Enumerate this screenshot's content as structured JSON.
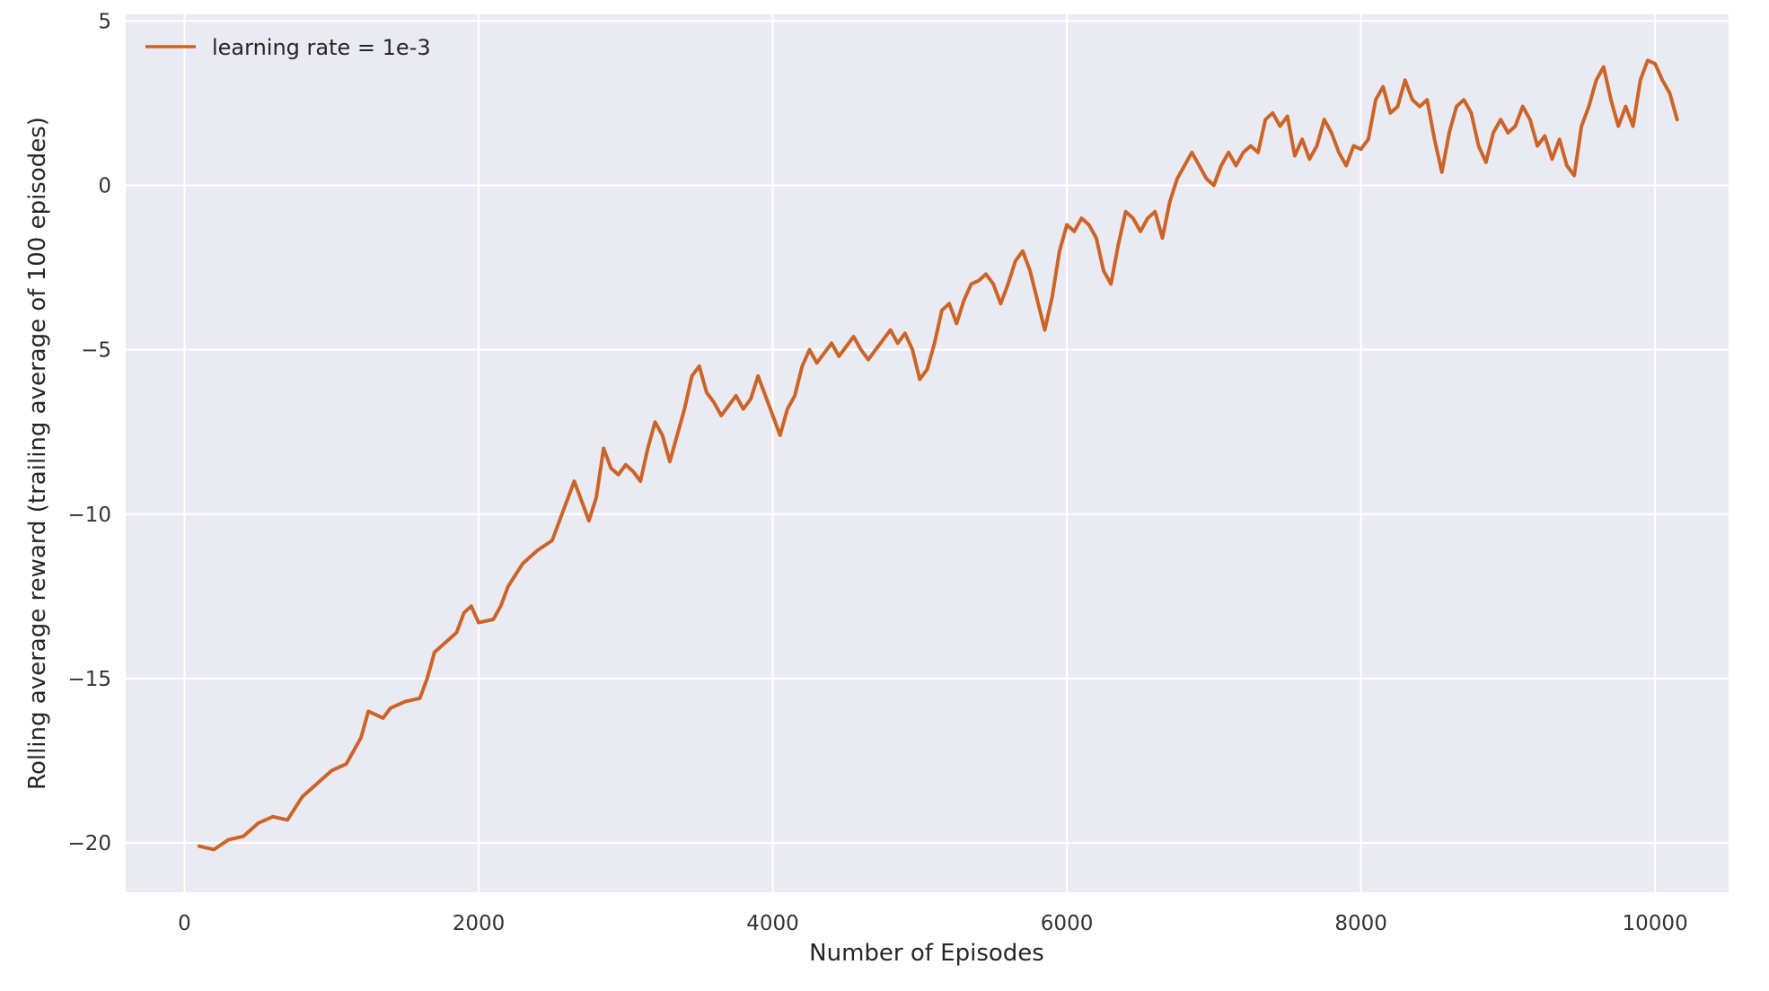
{
  "chart_data": {
    "type": "line",
    "title": "",
    "xlabel": "Number of Episodes",
    "ylabel": "Rolling average reward (trailing average of 100 episodes)",
    "xlim": [
      -400,
      10500
    ],
    "ylim": [
      -21.5,
      5.2
    ],
    "xticks": [
      0,
      2000,
      4000,
      6000,
      8000,
      10000
    ],
    "xtick_labels": [
      "0",
      "2000",
      "4000",
      "6000",
      "8000",
      "10000"
    ],
    "yticks": [
      5,
      0,
      -5,
      -10,
      -15,
      -20
    ],
    "ytick_labels": [
      "5",
      "0",
      "−5",
      "−10",
      "−15",
      "−20"
    ],
    "grid": true,
    "legend_position": "top-left",
    "colors": {
      "background": "#eaeaf2",
      "grid": "#ffffff",
      "line": "#cc6428"
    },
    "series": [
      {
        "name": "learning rate = 1e-3",
        "color": "#cc6428",
        "points": [
          [
            100,
            -20.1
          ],
          [
            200,
            -20.2
          ],
          [
            300,
            -19.9
          ],
          [
            400,
            -19.8
          ],
          [
            500,
            -19.4
          ],
          [
            600,
            -19.2
          ],
          [
            700,
            -19.3
          ],
          [
            800,
            -18.6
          ],
          [
            900,
            -18.2
          ],
          [
            1000,
            -17.8
          ],
          [
            1100,
            -17.6
          ],
          [
            1200,
            -16.8
          ],
          [
            1250,
            -16.0
          ],
          [
            1350,
            -16.2
          ],
          [
            1400,
            -15.9
          ],
          [
            1500,
            -15.7
          ],
          [
            1600,
            -15.6
          ],
          [
            1650,
            -15.0
          ],
          [
            1700,
            -14.2
          ],
          [
            1800,
            -13.8
          ],
          [
            1850,
            -13.6
          ],
          [
            1900,
            -13.0
          ],
          [
            1950,
            -12.8
          ],
          [
            2000,
            -13.3
          ],
          [
            2100,
            -13.2
          ],
          [
            2150,
            -12.8
          ],
          [
            2200,
            -12.2
          ],
          [
            2300,
            -11.5
          ],
          [
            2400,
            -11.1
          ],
          [
            2500,
            -10.8
          ],
          [
            2550,
            -10.2
          ],
          [
            2600,
            -9.6
          ],
          [
            2650,
            -9.0
          ],
          [
            2700,
            -9.6
          ],
          [
            2750,
            -10.2
          ],
          [
            2800,
            -9.5
          ],
          [
            2850,
            -8.0
          ],
          [
            2900,
            -8.6
          ],
          [
            2950,
            -8.8
          ],
          [
            3000,
            -8.5
          ],
          [
            3050,
            -8.7
          ],
          [
            3100,
            -9.0
          ],
          [
            3150,
            -8.0
          ],
          [
            3200,
            -7.2
          ],
          [
            3250,
            -7.6
          ],
          [
            3300,
            -8.4
          ],
          [
            3350,
            -7.6
          ],
          [
            3400,
            -6.8
          ],
          [
            3450,
            -5.8
          ],
          [
            3500,
            -5.5
          ],
          [
            3550,
            -6.3
          ],
          [
            3600,
            -6.6
          ],
          [
            3650,
            -7.0
          ],
          [
            3700,
            -6.7
          ],
          [
            3750,
            -6.4
          ],
          [
            3800,
            -6.8
          ],
          [
            3850,
            -6.5
          ],
          [
            3900,
            -5.8
          ],
          [
            3950,
            -6.4
          ],
          [
            4000,
            -7.0
          ],
          [
            4050,
            -7.6
          ],
          [
            4100,
            -6.8
          ],
          [
            4150,
            -6.4
          ],
          [
            4200,
            -5.5
          ],
          [
            4250,
            -5.0
          ],
          [
            4300,
            -5.4
          ],
          [
            4350,
            -5.1
          ],
          [
            4400,
            -4.8
          ],
          [
            4450,
            -5.2
          ],
          [
            4500,
            -4.9
          ],
          [
            4550,
            -4.6
          ],
          [
            4600,
            -5.0
          ],
          [
            4650,
            -5.3
          ],
          [
            4700,
            -5.0
          ],
          [
            4750,
            -4.7
          ],
          [
            4800,
            -4.4
          ],
          [
            4850,
            -4.8
          ],
          [
            4900,
            -4.5
          ],
          [
            4950,
            -5.0
          ],
          [
            5000,
            -5.9
          ],
          [
            5050,
            -5.6
          ],
          [
            5100,
            -4.8
          ],
          [
            5150,
            -3.8
          ],
          [
            5200,
            -3.6
          ],
          [
            5250,
            -4.2
          ],
          [
            5300,
            -3.5
          ],
          [
            5350,
            -3.0
          ],
          [
            5400,
            -2.9
          ],
          [
            5450,
            -2.7
          ],
          [
            5500,
            -3.0
          ],
          [
            5550,
            -3.6
          ],
          [
            5600,
            -3.0
          ],
          [
            5650,
            -2.3
          ],
          [
            5700,
            -2.0
          ],
          [
            5750,
            -2.6
          ],
          [
            5800,
            -3.5
          ],
          [
            5850,
            -4.4
          ],
          [
            5900,
            -3.4
          ],
          [
            5950,
            -2.0
          ],
          [
            6000,
            -1.2
          ],
          [
            6050,
            -1.4
          ],
          [
            6100,
            -1.0
          ],
          [
            6150,
            -1.2
          ],
          [
            6200,
            -1.6
          ],
          [
            6250,
            -2.6
          ],
          [
            6300,
            -3.0
          ],
          [
            6350,
            -1.8
          ],
          [
            6400,
            -0.8
          ],
          [
            6450,
            -1.0
          ],
          [
            6500,
            -1.4
          ],
          [
            6550,
            -1.0
          ],
          [
            6600,
            -0.8
          ],
          [
            6650,
            -1.6
          ],
          [
            6700,
            -0.5
          ],
          [
            6750,
            0.2
          ],
          [
            6800,
            0.6
          ],
          [
            6850,
            1.0
          ],
          [
            6900,
            0.6
          ],
          [
            6950,
            0.2
          ],
          [
            7000,
            0.0
          ],
          [
            7050,
            0.6
          ],
          [
            7100,
            1.0
          ],
          [
            7150,
            0.6
          ],
          [
            7200,
            1.0
          ],
          [
            7250,
            1.2
          ],
          [
            7300,
            1.0
          ],
          [
            7350,
            2.0
          ],
          [
            7400,
            2.2
          ],
          [
            7450,
            1.8
          ],
          [
            7500,
            2.1
          ],
          [
            7550,
            0.9
          ],
          [
            7600,
            1.4
          ],
          [
            7650,
            0.8
          ],
          [
            7700,
            1.2
          ],
          [
            7750,
            2.0
          ],
          [
            7800,
            1.6
          ],
          [
            7850,
            1.0
          ],
          [
            7900,
            0.6
          ],
          [
            7950,
            1.2
          ],
          [
            8000,
            1.1
          ],
          [
            8050,
            1.4
          ],
          [
            8100,
            2.6
          ],
          [
            8150,
            3.0
          ],
          [
            8200,
            2.2
          ],
          [
            8250,
            2.4
          ],
          [
            8300,
            3.2
          ],
          [
            8350,
            2.6
          ],
          [
            8400,
            2.4
          ],
          [
            8450,
            2.6
          ],
          [
            8500,
            1.4
          ],
          [
            8550,
            0.4
          ],
          [
            8600,
            1.6
          ],
          [
            8650,
            2.4
          ],
          [
            8700,
            2.6
          ],
          [
            8750,
            2.2
          ],
          [
            8800,
            1.2
          ],
          [
            8850,
            0.7
          ],
          [
            8900,
            1.6
          ],
          [
            8950,
            2.0
          ],
          [
            9000,
            1.6
          ],
          [
            9050,
            1.8
          ],
          [
            9100,
            2.4
          ],
          [
            9150,
            2.0
          ],
          [
            9200,
            1.2
          ],
          [
            9250,
            1.5
          ],
          [
            9300,
            0.8
          ],
          [
            9350,
            1.4
          ],
          [
            9400,
            0.6
          ],
          [
            9450,
            0.3
          ],
          [
            9500,
            1.8
          ],
          [
            9550,
            2.4
          ],
          [
            9600,
            3.2
          ],
          [
            9650,
            3.6
          ],
          [
            9700,
            2.6
          ],
          [
            9750,
            1.8
          ],
          [
            9800,
            2.4
          ],
          [
            9850,
            1.8
          ],
          [
            9900,
            3.2
          ],
          [
            9950,
            3.8
          ],
          [
            10000,
            3.7
          ],
          [
            10050,
            3.2
          ],
          [
            10100,
            2.8
          ],
          [
            10150,
            2.0
          ]
        ]
      }
    ]
  }
}
